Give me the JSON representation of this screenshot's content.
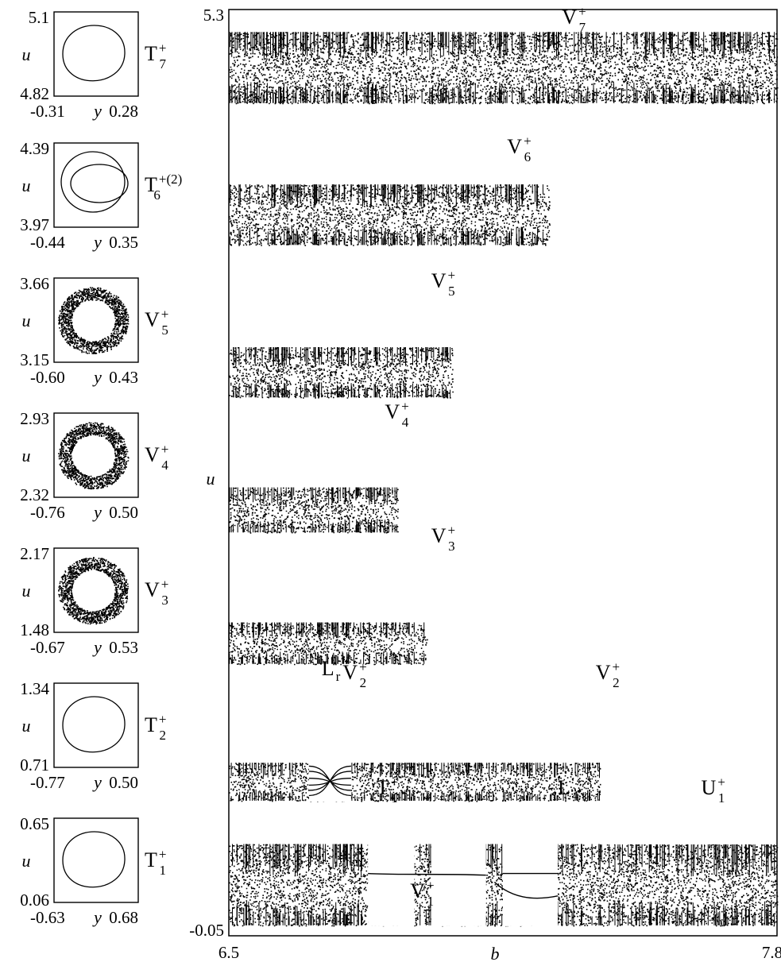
{
  "chart_data": [
    {
      "type": "scatter",
      "role": "bifurcation-diagram",
      "xlabel": "b",
      "ylabel": "u",
      "xlim": [
        6.5,
        7.8
      ],
      "ylim": [
        -0.05,
        5.3
      ],
      "x_ticks": [
        "6.5",
        "7.8"
      ],
      "y_ticks": [
        "5.3",
        "-0.05"
      ],
      "grid": false,
      "legend": "none",
      "bands": [
        {
          "x": [
            6.5,
            7.8
          ],
          "u": [
            4.76,
            5.17
          ],
          "label": "V7",
          "label_sup": "+"
        },
        {
          "x": [
            6.5,
            7.26
          ],
          "u": [
            3.94,
            4.29
          ],
          "label": "V6",
          "label_sup": "+"
        },
        {
          "x": [
            6.5,
            7.03
          ],
          "u": [
            3.06,
            3.35
          ],
          "label": "V5",
          "label_sup": "+"
        },
        {
          "x": [
            6.5,
            6.9
          ],
          "u": [
            2.28,
            2.54
          ],
          "label": "V4",
          "label_sup": "+"
        },
        {
          "x": [
            6.5,
            6.97
          ],
          "u": [
            1.52,
            1.76
          ],
          "label": "V3",
          "label_sup": "+"
        },
        {
          "x": [
            6.5,
            7.38
          ],
          "u": [
            0.73,
            0.95
          ],
          "label": "V2",
          "label_sup": "+"
        },
        {
          "x": [
            6.5,
            7.8
          ],
          "u": [
            0.01,
            0.48
          ],
          "label": "T1",
          "label_sup": "+"
        }
      ],
      "annotations": [
        {
          "name": "Lr",
          "base": "L",
          "sub": "r"
        },
        {
          "name": "V2 (middle)",
          "base": "V",
          "sub": "2",
          "sup": "+"
        },
        {
          "name": "V2 (right)",
          "base": "V",
          "sub": "2",
          "sup": "+"
        },
        {
          "name": "L4",
          "base": "L",
          "sub": "4"
        },
        {
          "name": "U1",
          "base": "U",
          "sub": "1",
          "sup": "+"
        },
        {
          "name": "V1",
          "base": "V",
          "sub": "1",
          "sup": "+"
        }
      ]
    },
    {
      "type": "scatter",
      "role": "phase-portrait",
      "xlabel": "y",
      "ylabel": "u",
      "xlim": [
        -0.31,
        0.28
      ],
      "ylim": [
        4.82,
        5.1
      ],
      "x_ticks": [
        "-0.31",
        "0.28"
      ],
      "y_ticks": [
        "5.1",
        "4.82"
      ],
      "attractor": "closed curve",
      "label": {
        "base": "T",
        "sub": "7",
        "sup": "+"
      }
    },
    {
      "type": "scatter",
      "role": "phase-portrait",
      "xlabel": "y",
      "ylabel": "u",
      "xlim": [
        -0.44,
        0.35
      ],
      "ylim": [
        3.97,
        4.39
      ],
      "x_ticks": [
        "-0.44",
        "0.35"
      ],
      "y_ticks": [
        "4.39",
        "3.97"
      ],
      "attractor": "double loop",
      "label": {
        "base": "T",
        "sub": "6",
        "sup": "+(2)"
      }
    },
    {
      "type": "scatter",
      "role": "phase-portrait",
      "xlabel": "y",
      "ylabel": "u",
      "xlim": [
        -0.6,
        0.43
      ],
      "ylim": [
        3.15,
        3.66
      ],
      "x_ticks": [
        "-0.60",
        "0.43"
      ],
      "y_ticks": [
        "3.66",
        "3.15"
      ],
      "attractor": "chaotic ring",
      "label": {
        "base": "V",
        "sub": "5",
        "sup": "+"
      }
    },
    {
      "type": "scatter",
      "role": "phase-portrait",
      "xlabel": "y",
      "ylabel": "u",
      "xlim": [
        -0.76,
        0.5
      ],
      "ylim": [
        2.32,
        2.93
      ],
      "x_ticks": [
        "-0.76",
        "0.50"
      ],
      "y_ticks": [
        "2.93",
        "2.32"
      ],
      "attractor": "chaotic ring",
      "label": {
        "base": "V",
        "sub": "4",
        "sup": "+"
      }
    },
    {
      "type": "scatter",
      "role": "phase-portrait",
      "xlabel": "y",
      "ylabel": "u",
      "xlim": [
        -0.67,
        0.53
      ],
      "ylim": [
        1.48,
        2.17
      ],
      "x_ticks": [
        "-0.67",
        "0.53"
      ],
      "y_ticks": [
        "2.17",
        "1.48"
      ],
      "attractor": "chaotic ring",
      "label": {
        "base": "V",
        "sub": "3",
        "sup": "+"
      }
    },
    {
      "type": "scatter",
      "role": "phase-portrait",
      "xlabel": "y",
      "ylabel": "u",
      "xlim": [
        -0.77,
        0.5
      ],
      "ylim": [
        0.71,
        1.34
      ],
      "x_ticks": [
        "-0.77",
        "0.50"
      ],
      "y_ticks": [
        "1.34",
        "0.71"
      ],
      "attractor": "closed curve",
      "label": {
        "base": "T",
        "sub": "2",
        "sup": "+"
      }
    },
    {
      "type": "scatter",
      "role": "phase-portrait",
      "xlabel": "y",
      "ylabel": "u",
      "xlim": [
        -0.63,
        0.68
      ],
      "ylim": [
        0.06,
        0.65
      ],
      "x_ticks": [
        "-0.63",
        "0.68"
      ],
      "y_ticks": [
        "0.65",
        "0.06"
      ],
      "attractor": "closed curve",
      "label": {
        "base": "T",
        "sub": "1",
        "sup": "+"
      }
    }
  ]
}
